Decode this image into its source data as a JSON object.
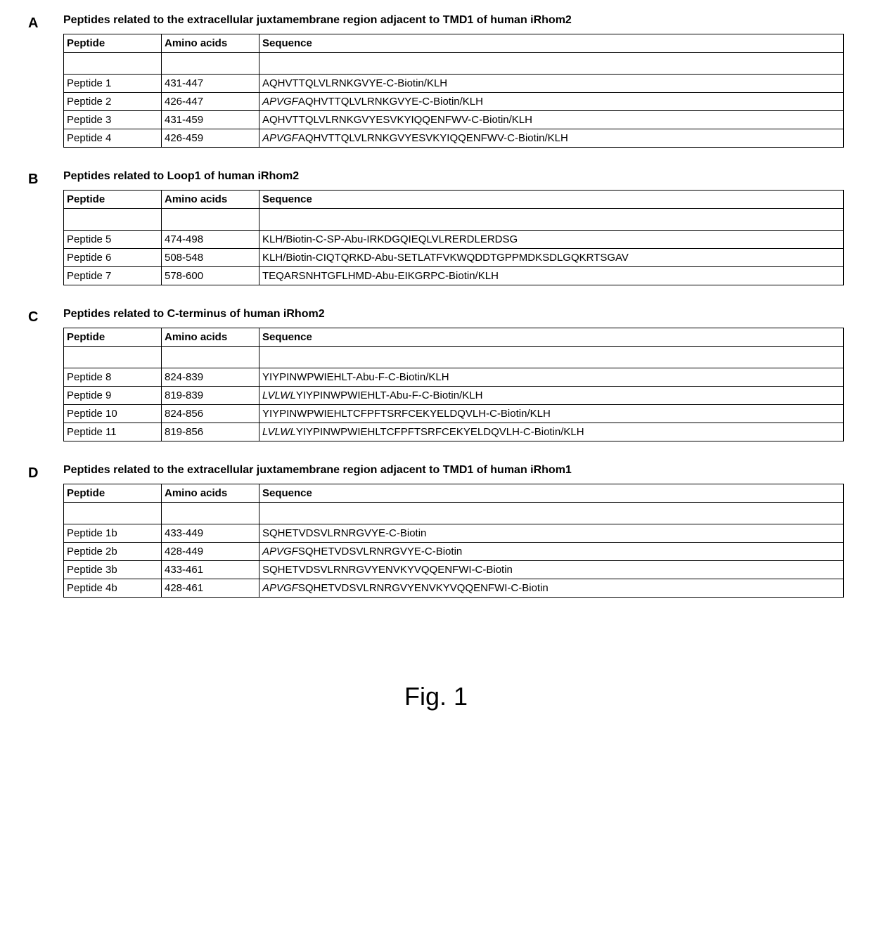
{
  "figure_caption": "Fig. 1",
  "columns": {
    "peptide": "Peptide",
    "amino": "Amino acids",
    "sequence": "Sequence"
  },
  "panels": {
    "A": {
      "label": "A",
      "title": "Peptides related to the extracellular juxtamembrane region adjacent to TMD1 of human iRhom2",
      "rows": [
        {
          "peptide": "Peptide 1",
          "amino": "431-447",
          "seq_prefix": "",
          "seq_main": "AQHVTTQLVLRNKGVYE-C-Biotin/KLH"
        },
        {
          "peptide": "Peptide 2",
          "amino": "426-447",
          "seq_prefix": "APVGF",
          "seq_main": "AQHVTTQLVLRNKGVYE-C-Biotin/KLH"
        },
        {
          "peptide": "Peptide 3",
          "amino": "431-459",
          "seq_prefix": "",
          "seq_main": "AQHVTTQLVLRNKGVYESVKYIQQENFWV-C-Biotin/KLH"
        },
        {
          "peptide": "Peptide 4",
          "amino": "426-459",
          "seq_prefix": "APVGF",
          "seq_main": "AQHVTTQLVLRNKGVYESVKYIQQENFWV-C-Biotin/KLH"
        }
      ]
    },
    "B": {
      "label": "B",
      "title": "Peptides related to Loop1 of human iRhom2",
      "rows": [
        {
          "peptide": "Peptide 5",
          "amino": "474-498",
          "seq_prefix": "",
          "seq_main": "KLH/Biotin-C-SP-Abu-IRKDGQIEQLVLRERDLERDSG"
        },
        {
          "peptide": "Peptide 6",
          "amino": "508-548",
          "seq_prefix": "",
          "seq_main": "KLH/Biotin-CIQTQRKD-Abu-SETLATFVKWQDDTGPPMDKSDLGQKRTSGAV"
        },
        {
          "peptide": "Peptide 7",
          "amino": "578-600",
          "seq_prefix": "",
          "seq_main": "TEQARSNHTGFLHMD-Abu-EIKGRPC-Biotin/KLH"
        }
      ]
    },
    "C": {
      "label": "C",
      "title": "Peptides related to C-terminus of human iRhom2",
      "rows": [
        {
          "peptide": "Peptide 8",
          "amino": "824-839",
          "seq_prefix": "",
          "seq_main": "YIYPINWPWIEHLT-Abu-F-C-Biotin/KLH"
        },
        {
          "peptide": "Peptide 9",
          "amino": "819-839",
          "seq_prefix": "LVLWL",
          "seq_main": "YIYPINWPWIEHLT-Abu-F-C-Biotin/KLH"
        },
        {
          "peptide": "Peptide 10",
          "amino": "824-856",
          "seq_prefix": "",
          "seq_main": "YIYPINWPWIEHLTCFPFTSRFCEKYELDQVLH-C-Biotin/KLH"
        },
        {
          "peptide": "Peptide 11",
          "amino": "819-856",
          "seq_prefix": "LVLWL",
          "seq_main": "YIYPINWPWIEHLTCFPFTSRFCEKYELDQVLH-C-Biotin/KLH"
        }
      ]
    },
    "D": {
      "label": "D",
      "title": "Peptides related to the extracellular juxtamembrane region adjacent to TMD1 of human iRhom1",
      "rows": [
        {
          "peptide": "Peptide 1b",
          "amino": "433-449",
          "seq_prefix": "",
          "seq_main": "SQHETVDSVLRNRGVYE-C-Biotin"
        },
        {
          "peptide": "Peptide 2b",
          "amino": "428-449",
          "seq_prefix": "APVGF",
          "seq_main": "SQHETVDSVLRNRGVYE-C-Biotin"
        },
        {
          "peptide": "Peptide 3b",
          "amino": "433-461",
          "seq_prefix": "",
          "seq_main": "SQHETVDSVLRNRGVYENVKYVQQENFWI-C-Biotin"
        },
        {
          "peptide": "Peptide 4b",
          "amino": "428-461",
          "seq_prefix": "APVGF",
          "seq_main": "SQHETVDSVLRNRGVYENVKYVQQENFWI-C-Biotin"
        }
      ]
    }
  }
}
